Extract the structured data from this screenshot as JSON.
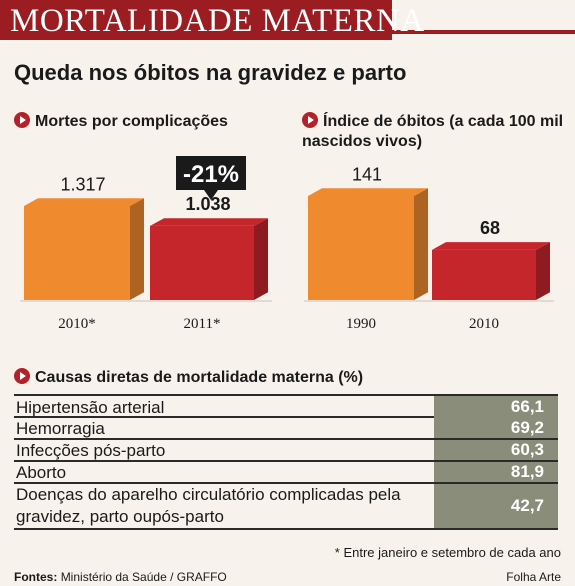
{
  "banner": {
    "title": "MORTALIDADE MATERNA"
  },
  "headline": "Queda nos óbitos na gravidez e parto",
  "colors": {
    "banner": "#9b1d22",
    "bar_orange": "#f08a2e",
    "bar_red": "#c4262c",
    "table_cell": "#8a8d79",
    "callout": "#1a1a1a"
  },
  "chart_data": [
    {
      "type": "bar",
      "title": "Mortes por complicações",
      "categories": [
        "2010*",
        "2011*"
      ],
      "values": [
        1317,
        1038
      ],
      "value_labels": [
        "1.317",
        "1.038"
      ],
      "annotation": "-21%"
    },
    {
      "type": "bar",
      "title": "Índice de óbitos (a cada 100 mil nascidos vivos)",
      "categories": [
        "1990",
        "2010"
      ],
      "values": [
        141,
        68
      ],
      "value_labels": [
        "141",
        "68"
      ]
    }
  ],
  "causes": {
    "title": "Causas diretas de mortalidade materna (%)",
    "rows": [
      {
        "label": "Hipertensão arterial",
        "value": "66,1"
      },
      {
        "label": "Hemorragia",
        "value": "69,2"
      },
      {
        "label": "Infecções pós-parto",
        "value": "60,3"
      },
      {
        "label": "Aborto",
        "value": "81,9"
      },
      {
        "label": "Doenças do aparelho circulatório complicadas pela gravidez, parto oupós-parto",
        "value": "42,7"
      }
    ]
  },
  "footnote": "* Entre janeiro e setembro de cada ano",
  "source": {
    "label": "Fontes:",
    "text": "Ministério da Saúde / GRAFFO"
  },
  "credit": "Folha Arte"
}
